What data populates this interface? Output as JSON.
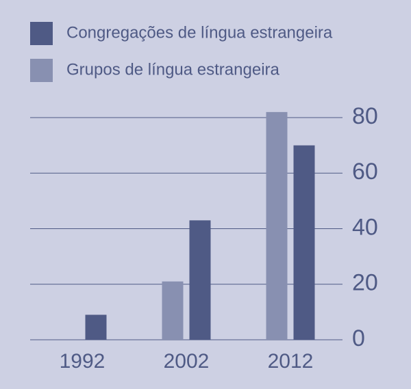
{
  "chart_data": {
    "type": "bar",
    "categories": [
      "1992",
      "2002",
      "2012"
    ],
    "series": [
      {
        "name": "Congregações de língua estrangeira",
        "color": "#4f5a85",
        "values": [
          9,
          43,
          70
        ]
      },
      {
        "name": "Grupos de língua estrangeira",
        "color": "#8890b1",
        "values": [
          0,
          21,
          82
        ]
      }
    ],
    "ylim": [
      0,
      80
    ],
    "yticks": [
      0,
      20,
      40,
      60,
      80
    ],
    "grid": true
  }
}
